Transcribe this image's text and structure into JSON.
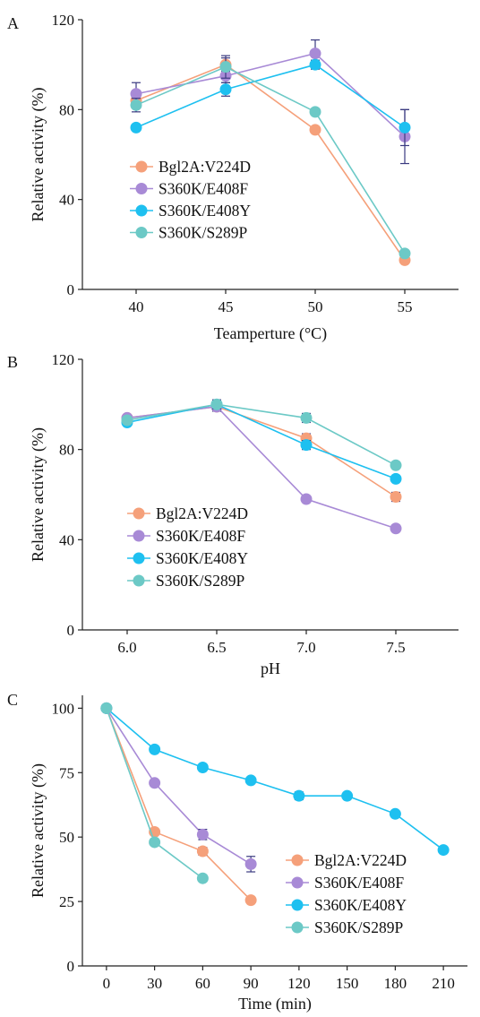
{
  "chart_data": [
    {
      "type": "line",
      "panel_label": "A",
      "xlabel": "Teamperture (°C)",
      "ylabel": "Relative activity (%)",
      "x": [
        40,
        45,
        50,
        55
      ],
      "xlim": [
        37,
        58
      ],
      "ylim": [
        0,
        120
      ],
      "yticks": [
        0,
        40,
        80,
        120
      ],
      "legend_position": "left-middle",
      "series": [
        {
          "name": "Bgl2A:V224D",
          "color": "#f5a07a",
          "values": [
            84,
            100,
            71,
            13
          ],
          "errors": [
            2,
            3,
            1,
            1
          ]
        },
        {
          "name": "S360K/E408F",
          "color": "#a88ad6",
          "values": [
            87,
            95,
            105,
            68
          ],
          "errors": [
            5,
            3,
            6,
            12
          ]
        },
        {
          "name": "S360K/E408Y",
          "color": "#1ec0f0",
          "values": [
            72,
            89,
            100,
            72
          ],
          "errors": [
            1,
            3,
            2,
            8
          ]
        },
        {
          "name": "S360K/S289P",
          "color": "#6cc9c6",
          "values": [
            82,
            99,
            79,
            16
          ],
          "errors": [
            3,
            5,
            1,
            1
          ]
        }
      ]
    },
    {
      "type": "line",
      "panel_label": "B",
      "xlabel": "pH",
      "ylabel": "Relative activity (%)",
      "x": [
        6.0,
        6.5,
        7.0,
        7.5
      ],
      "xticklabels": [
        "6.0",
        "6.5",
        "7.0",
        "7.5"
      ],
      "xlim": [
        5.75,
        7.85
      ],
      "ylim": [
        0,
        120
      ],
      "yticks": [
        0,
        40,
        80,
        120
      ],
      "legend_position": "left-bottom",
      "series": [
        {
          "name": "Bgl2A:V224D",
          "color": "#f5a07a",
          "values": [
            94,
            99,
            85,
            59
          ],
          "errors": [
            1,
            2,
            2,
            2
          ]
        },
        {
          "name": "S360K/E408F",
          "color": "#a88ad6",
          "values": [
            94,
            99,
            58,
            45
          ],
          "errors": [
            1,
            2,
            1,
            1
          ]
        },
        {
          "name": "S360K/E408Y",
          "color": "#1ec0f0",
          "values": [
            92,
            100,
            82,
            67
          ],
          "errors": [
            1,
            2,
            2,
            1
          ]
        },
        {
          "name": "S360K/S289P",
          "color": "#6cc9c6",
          "values": [
            93,
            100,
            94,
            73
          ],
          "errors": [
            1,
            2,
            2,
            1
          ]
        }
      ]
    },
    {
      "type": "line",
      "panel_label": "C",
      "xlabel": "Time (min)",
      "ylabel": "Relative activity (%)",
      "xticks": [
        0,
        30,
        60,
        90,
        120,
        150,
        180,
        210
      ],
      "xlim": [
        -15,
        225
      ],
      "ylim": [
        0,
        105
      ],
      "yticks": [
        0,
        25,
        50,
        75,
        100
      ],
      "legend_position": "right-bottom",
      "series": [
        {
          "name": "Bgl2A:V224D",
          "color": "#f5a07a",
          "x": [
            0,
            30,
            60,
            90
          ],
          "values": [
            100,
            52,
            44.5,
            25.5
          ],
          "errors": [
            1,
            1,
            1.5,
            1
          ]
        },
        {
          "name": "S360K/E408F",
          "color": "#a88ad6",
          "x": [
            0,
            30,
            60,
            90
          ],
          "values": [
            100,
            71,
            51,
            39.5
          ],
          "errors": [
            1,
            1,
            2,
            3
          ]
        },
        {
          "name": "S360K/E408Y",
          "color": "#1ec0f0",
          "x": [
            0,
            30,
            60,
            90,
            120,
            150,
            180,
            210
          ],
          "values": [
            100,
            84,
            77,
            72,
            66,
            66,
            59,
            45
          ],
          "errors": [
            1,
            1,
            1,
            1,
            1.5,
            1,
            1,
            1
          ]
        },
        {
          "name": "S360K/S289P",
          "color": "#6cc9c6",
          "x": [
            0,
            30,
            60
          ],
          "values": [
            100,
            48,
            34
          ],
          "errors": [
            1,
            1,
            1
          ]
        }
      ]
    }
  ]
}
